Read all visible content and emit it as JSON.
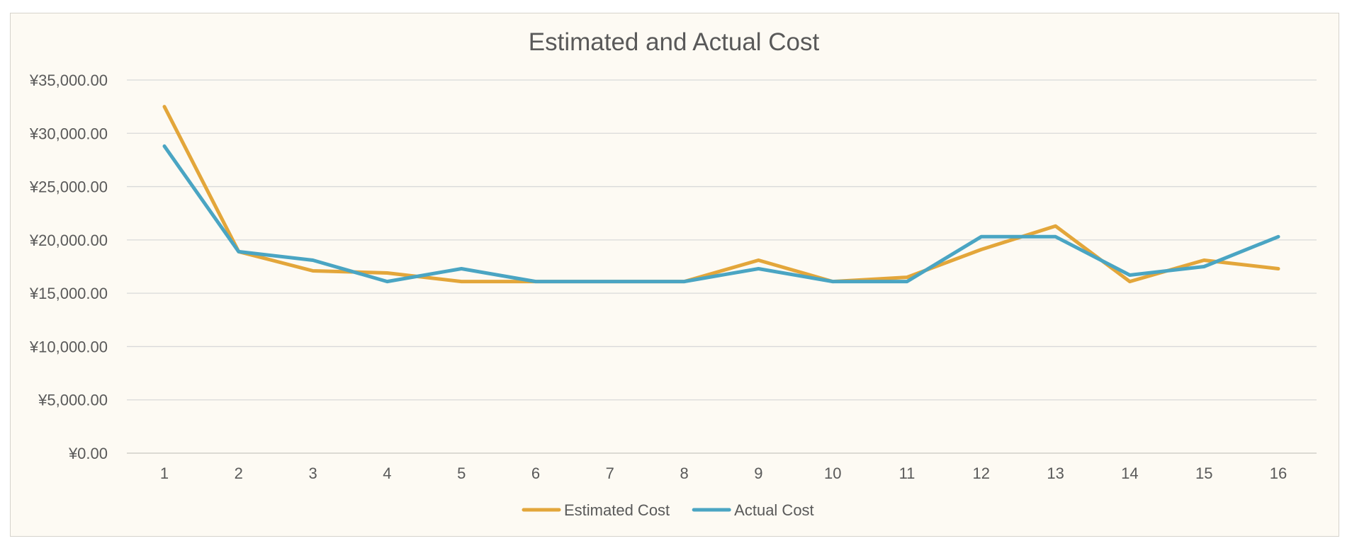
{
  "chart_data": {
    "type": "line",
    "title": "Estimated and Actual Cost",
    "categories": [
      "1",
      "2",
      "3",
      "4",
      "5",
      "6",
      "7",
      "8",
      "9",
      "10",
      "11",
      "12",
      "13",
      "14",
      "15",
      "16"
    ],
    "y_ticks": [
      "¥0.00",
      "¥5,000.00",
      "¥10,000.00",
      "¥15,000.00",
      "¥20,000.00",
      "¥25,000.00",
      "¥30,000.00",
      "¥35,000.00"
    ],
    "ylim": [
      0,
      35000
    ],
    "grid": true,
    "legend_position": "bottom",
    "series": [
      {
        "name": "Estimated Cost",
        "color": "#e3a63a",
        "values": [
          32500,
          18900,
          17100,
          16900,
          16100,
          16100,
          16100,
          16100,
          18100,
          16100,
          16500,
          19100,
          21300,
          16100,
          18100,
          17300
        ]
      },
      {
        "name": "Actual Cost",
        "color": "#4aa5c3",
        "values": [
          28800,
          18900,
          18100,
          16100,
          17300,
          16100,
          16100,
          16100,
          17300,
          16100,
          16100,
          20300,
          20300,
          16700,
          17500,
          20300
        ]
      }
    ]
  }
}
